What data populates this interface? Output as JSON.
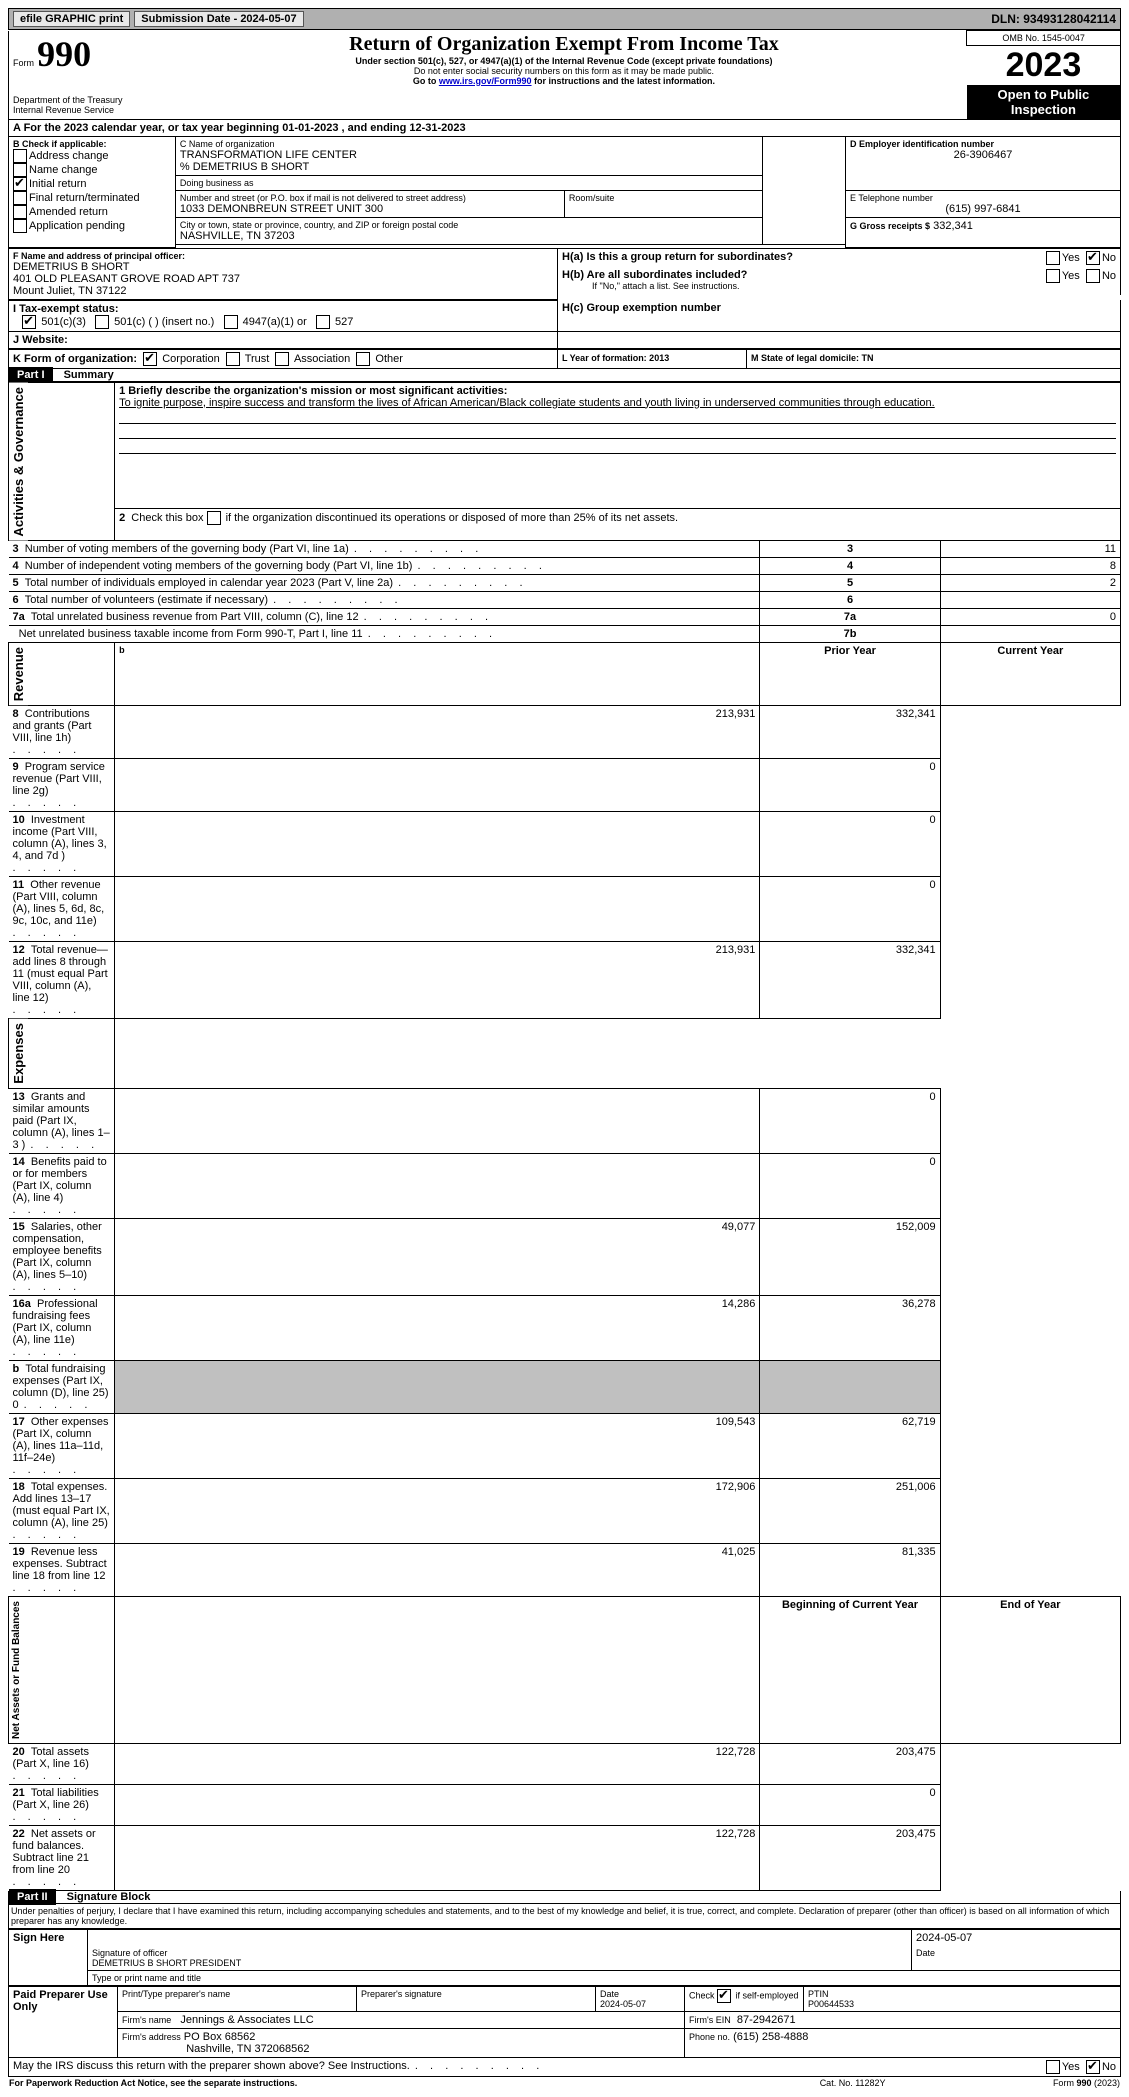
{
  "top": {
    "efile": "efile GRAPHIC print",
    "subdate_label": "Submission Date - 2024-05-07",
    "dln": "DLN: 93493128042114"
  },
  "header": {
    "form": "Form",
    "formno": "990",
    "dept": "Department of the Treasury\nInternal Revenue Service",
    "title": "Return of Organization Exempt From Income Tax",
    "subtitle": "Under section 501(c), 527, or 4947(a)(1) of the Internal Revenue Code (except private foundations)",
    "note1": "Do not enter social security numbers on this form as it may be made public.",
    "note2": "Go to www.irs.gov/Form990 for instructions and the latest information.",
    "irs_link": "www.irs.gov/Form990",
    "omb": "OMB No. 1545-0047",
    "year": "2023",
    "open": "Open to Public Inspection"
  },
  "A": {
    "label": "A For the 2023 calendar year, or tax year beginning 01-01-2023    , and ending 12-31-2023"
  },
  "B": {
    "label": "B Check if applicable:",
    "items": [
      {
        "label": "Address change",
        "checked": false
      },
      {
        "label": "Name change",
        "checked": false
      },
      {
        "label": "Initial return",
        "checked": true
      },
      {
        "label": "Final return/terminated",
        "checked": false
      },
      {
        "label": "Amended return",
        "checked": false
      },
      {
        "label": "Application pending",
        "checked": false
      }
    ]
  },
  "C": {
    "name_label": "C Name of organization",
    "name": "TRANSFORMATION LIFE CENTER",
    "care": "% DEMETRIUS B SHORT",
    "dba_label": "Doing business as",
    "street_label": "Number and street (or P.O. box if mail is not delivered to street address)",
    "street": "1033 DEMONBREUN STREET UNIT 300",
    "room_label": "Room/suite",
    "city_label": "City or town, state or province, country, and ZIP or foreign postal code",
    "city": "NASHVILLE, TN  37203"
  },
  "D": {
    "label": "D Employer identification number",
    "value": "26-3906467"
  },
  "E": {
    "label": "E Telephone number",
    "value": "(615) 997-6841"
  },
  "G": {
    "label": "G Gross receipts $",
    "value": "332,341"
  },
  "F": {
    "label": "F  Name and address of principal officer:",
    "name": "DEMETRIUS B SHORT",
    "addr1": "401 OLD PLEASANT GROVE ROAD APT 737",
    "addr2": "Mount Juliet, TN  37122"
  },
  "H": {
    "a_label": "H(a)  Is this a group return for subordinates?",
    "a_no_checked": true,
    "b_label": "H(b)  Are all subordinates included?",
    "b_note": "If \"No,\" attach a list. See instructions.",
    "c_label": "H(c)  Group exemption number"
  },
  "I": {
    "label": "I    Tax-exempt status:",
    "opts": [
      "501(c)(3)",
      "501(c) (   ) (insert no.)",
      "4947(a)(1) or",
      "527"
    ],
    "checked_index": 0
  },
  "J": {
    "label": "J    Website:"
  },
  "K": {
    "label": "K Form of organization:",
    "opts": [
      "Corporation",
      "Trust",
      "Association",
      "Other"
    ],
    "checked_index": 0
  },
  "L": {
    "label": "L Year of formation: 2013"
  },
  "M": {
    "label": "M State of legal domicile: TN"
  },
  "part1": {
    "header": "Part I",
    "title": "Summary",
    "q1_label": "1   Briefly describe the organization's mission or most significant activities:",
    "q1_text": "To ignite purpose, inspire success and transform the lives of African American/Black collegiate students and youth living in underserved communities through education.",
    "q2": "2   Check this box         if the organization discontinued its operations or disposed of more than 25% of its net assets.",
    "sections": {
      "gov": "Activities & Governance",
      "rev": "Revenue",
      "exp": "Expenses",
      "net": "Net Assets or Fund Balances"
    },
    "gov_rows": [
      {
        "n": "3",
        "label": "Number of voting members of the governing body (Part VI, line 1a)",
        "box": "3",
        "val": "11"
      },
      {
        "n": "4",
        "label": "Number of independent voting members of the governing body (Part VI, line 1b)",
        "box": "4",
        "val": "8"
      },
      {
        "n": "5",
        "label": "Total number of individuals employed in calendar year 2023 (Part V, line 2a)",
        "box": "5",
        "val": "2"
      },
      {
        "n": "6",
        "label": "Total number of volunteers (estimate if necessary)",
        "box": "6",
        "val": ""
      },
      {
        "n": "7a",
        "label": "Total unrelated business revenue from Part VIII, column (C), line 12",
        "box": "7a",
        "val": "0"
      },
      {
        "n": "",
        "label": "Net unrelated business taxable income from Form 990-T, Part I, line 11",
        "box": "7b",
        "val": ""
      }
    ],
    "col_headers": {
      "prior": "Prior Year",
      "current": "Current Year",
      "beg": "Beginning of Current Year",
      "end": "End of Year"
    },
    "rev_rows": [
      {
        "n": "8",
        "label": "Contributions and grants (Part VIII, line 1h)",
        "p": "213,931",
        "c": "332,341"
      },
      {
        "n": "9",
        "label": "Program service revenue (Part VIII, line 2g)",
        "p": "",
        "c": "0"
      },
      {
        "n": "10",
        "label": "Investment income (Part VIII, column (A), lines 3, 4, and 7d )",
        "p": "",
        "c": "0"
      },
      {
        "n": "11",
        "label": "Other revenue (Part VIII, column (A), lines 5, 6d, 8c, 9c, 10c, and 11e)",
        "p": "",
        "c": "0"
      },
      {
        "n": "12",
        "label": "Total revenue—add lines 8 through 11 (must equal Part VIII, column (A), line 12)",
        "p": "213,931",
        "c": "332,341"
      }
    ],
    "exp_rows": [
      {
        "n": "13",
        "label": "Grants and similar amounts paid (Part IX, column (A), lines 1–3 )",
        "p": "",
        "c": "0"
      },
      {
        "n": "14",
        "label": "Benefits paid to or for members (Part IX, column (A), line 4)",
        "p": "",
        "c": "0"
      },
      {
        "n": "15",
        "label": "Salaries, other compensation, employee benefits (Part IX, column (A), lines 5–10)",
        "p": "49,077",
        "c": "152,009"
      },
      {
        "n": "16a",
        "label": "Professional fundraising fees (Part IX, column (A), line 11e)",
        "p": "14,286",
        "c": "36,278"
      },
      {
        "n": "b",
        "label": "Total fundraising expenses (Part IX, column (D), line 25) 0",
        "p": "GREY",
        "c": "GREY"
      },
      {
        "n": "17",
        "label": "Other expenses (Part IX, column (A), lines 11a–11d, 11f–24e)",
        "p": "109,543",
        "c": "62,719"
      },
      {
        "n": "18",
        "label": "Total expenses. Add lines 13–17 (must equal Part IX, column (A), line 25)",
        "p": "172,906",
        "c": "251,006"
      },
      {
        "n": "19",
        "label": "Revenue less expenses. Subtract line 18 from line 12",
        "p": "41,025",
        "c": "81,335"
      }
    ],
    "net_rows": [
      {
        "n": "20",
        "label": "Total assets (Part X, line 16)",
        "p": "122,728",
        "c": "203,475"
      },
      {
        "n": "21",
        "label": "Total liabilities (Part X, line 26)",
        "p": "",
        "c": "0"
      },
      {
        "n": "22",
        "label": "Net assets or fund balances. Subtract line 21 from line 20",
        "p": "122,728",
        "c": "203,475"
      }
    ]
  },
  "part2": {
    "header": "Part II",
    "title": "Signature Block",
    "decl": "Under penalties of perjury, I declare that I have examined this return, including accompanying schedules and statements, and to the best of my knowledge and belief, it is true, correct, and complete. Declaration of preparer (other than officer) is based on all information of which preparer has any knowledge.",
    "sign_here": "Sign Here",
    "sig_officer": "Signature of officer",
    "officer": "DEMETRIUS B SHORT  PRESIDENT",
    "type_label": "Type or print name and title",
    "date_label": "Date",
    "date1": "2024-05-07",
    "paid": "Paid Preparer Use Only",
    "prep_name_label": "Print/Type preparer's name",
    "prep_sig_label": "Preparer's signature",
    "prep_date": "2024-05-07",
    "check_self": "Check         if self-employed",
    "ptin_label": "PTIN",
    "ptin": "P00644533",
    "firm_name_label": "Firm's name",
    "firm_name": "Jennings & Associates LLC",
    "firm_ein_label": "Firm's EIN",
    "firm_ein": "87-2942671",
    "firm_addr_label": "Firm's address",
    "firm_addr1": "PO Box 68562",
    "firm_addr2": "Nashville, TN  372068562",
    "phone_label": "Phone no.",
    "phone": "(615) 258-4888",
    "may_irs": "May the IRS discuss this return with the preparer shown above? See Instructions."
  },
  "footer": {
    "paperwork": "For Paperwork Reduction Act Notice, see the separate instructions.",
    "cat": "Cat. No. 11282Y",
    "form": "Form 990 (2023)"
  },
  "yes": "Yes",
  "no": "No"
}
